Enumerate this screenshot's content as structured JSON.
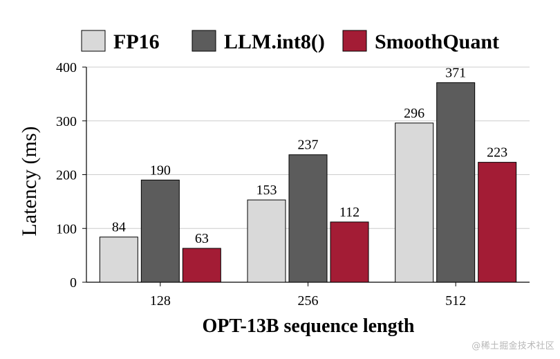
{
  "chart_data": {
    "type": "bar",
    "title": "",
    "xlabel": "OPT-13B sequence length",
    "ylabel": "Latency (ms)",
    "ylim": [
      0,
      400
    ],
    "yticks": [
      0,
      100,
      200,
      300,
      400
    ],
    "categories": [
      "128",
      "256",
      "512"
    ],
    "series": [
      {
        "name": "FP16",
        "color": "#d9d9d9",
        "values": [
          84,
          153,
          296
        ]
      },
      {
        "name": "LLM.int8()",
        "color": "#5c5c5c",
        "values": [
          190,
          237,
          371
        ]
      },
      {
        "name": "SmoothQuant",
        "color": "#a31c35",
        "values": [
          63,
          112,
          223
        ]
      }
    ],
    "legend_position": "top",
    "grid": true
  },
  "watermark": "@稀土掘金技术社区"
}
